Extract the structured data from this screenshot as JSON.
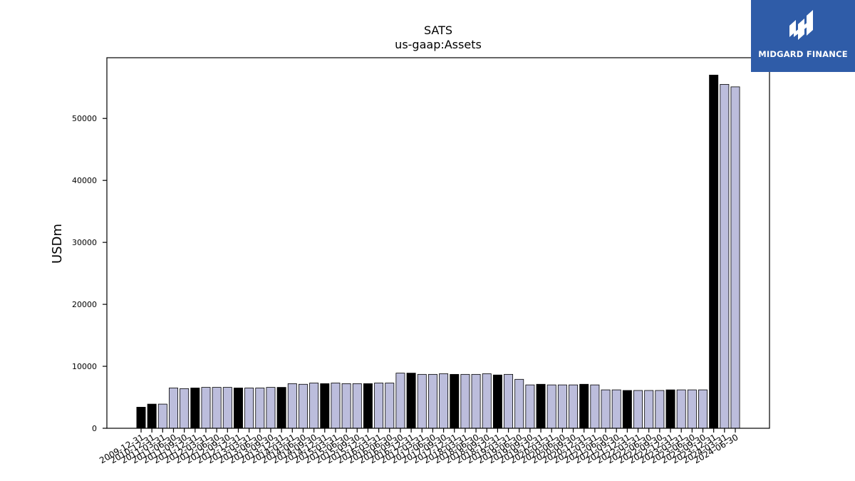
{
  "chart_data": {
    "type": "bar",
    "title": "SATS",
    "subtitle": "us-gaap:Assets",
    "xlabel": "",
    "ylabel": "USDm",
    "ylim": [
      0,
      60000
    ],
    "yticks": [
      0,
      10000,
      20000,
      30000,
      40000,
      50000
    ],
    "grid": false,
    "colors": {
      "annual": "#000000",
      "quarterly": "#bcbddc",
      "edge": "#000000"
    },
    "categories": [
      "2009-12-31",
      "2010-12-31",
      "2011-03-31",
      "2011-06-30",
      "2011-09-30",
      "2011-12-31",
      "2012-03-31",
      "2012-06-30",
      "2012-09-30",
      "2012-12-31",
      "2013-03-31",
      "2013-06-30",
      "2013-09-30",
      "2013-12-31",
      "2014-03-31",
      "2014-06-30",
      "2014-09-30",
      "2014-12-31",
      "2015-03-31",
      "2015-06-30",
      "2015-09-30",
      "2015-12-31",
      "2016-03-31",
      "2016-06-30",
      "2016-09-30",
      "2016-12-31",
      "2017-03-31",
      "2017-06-30",
      "2017-09-30",
      "2017-12-31",
      "2018-03-31",
      "2018-06-30",
      "2018-09-30",
      "2018-12-31",
      "2019-03-31",
      "2019-06-30",
      "2019-09-30",
      "2019-12-31",
      "2020-03-31",
      "2020-06-30",
      "2020-09-30",
      "2020-12-31",
      "2021-03-31",
      "2021-06-30",
      "2021-09-30",
      "2021-12-31",
      "2022-03-31",
      "2022-06-30",
      "2022-09-30",
      "2022-12-31",
      "2023-03-31",
      "2023-06-30",
      "2023-09-30",
      "2023-12-31",
      "2024-03-31",
      "2024-06-30"
    ],
    "values": [
      3400,
      3900,
      3900,
      6500,
      6400,
      6500,
      6600,
      6600,
      6600,
      6500,
      6500,
      6500,
      6600,
      6600,
      7200,
      7100,
      7300,
      7200,
      7300,
      7200,
      7200,
      7200,
      7300,
      7300,
      8900,
      8900,
      8700,
      8700,
      8800,
      8700,
      8700,
      8700,
      8800,
      8600,
      8700,
      7900,
      7000,
      7100,
      7000,
      7000,
      7000,
      7100,
      7000,
      6200,
      6200,
      6100,
      6100,
      6100,
      6100,
      6200,
      6200,
      6200,
      6200,
      57000,
      55500,
      55100
    ],
    "kind": [
      "A",
      "A",
      "Q",
      "Q",
      "Q",
      "A",
      "Q",
      "Q",
      "Q",
      "A",
      "Q",
      "Q",
      "Q",
      "A",
      "Q",
      "Q",
      "Q",
      "A",
      "Q",
      "Q",
      "Q",
      "A",
      "Q",
      "Q",
      "Q",
      "A",
      "Q",
      "Q",
      "Q",
      "A",
      "Q",
      "Q",
      "Q",
      "A",
      "Q",
      "Q",
      "Q",
      "A",
      "Q",
      "Q",
      "Q",
      "A",
      "Q",
      "Q",
      "Q",
      "A",
      "Q",
      "Q",
      "Q",
      "A",
      "Q",
      "Q",
      "Q",
      "A",
      "Q",
      "Q"
    ]
  },
  "logo": {
    "text": "MIDGARD FINANCE"
  }
}
